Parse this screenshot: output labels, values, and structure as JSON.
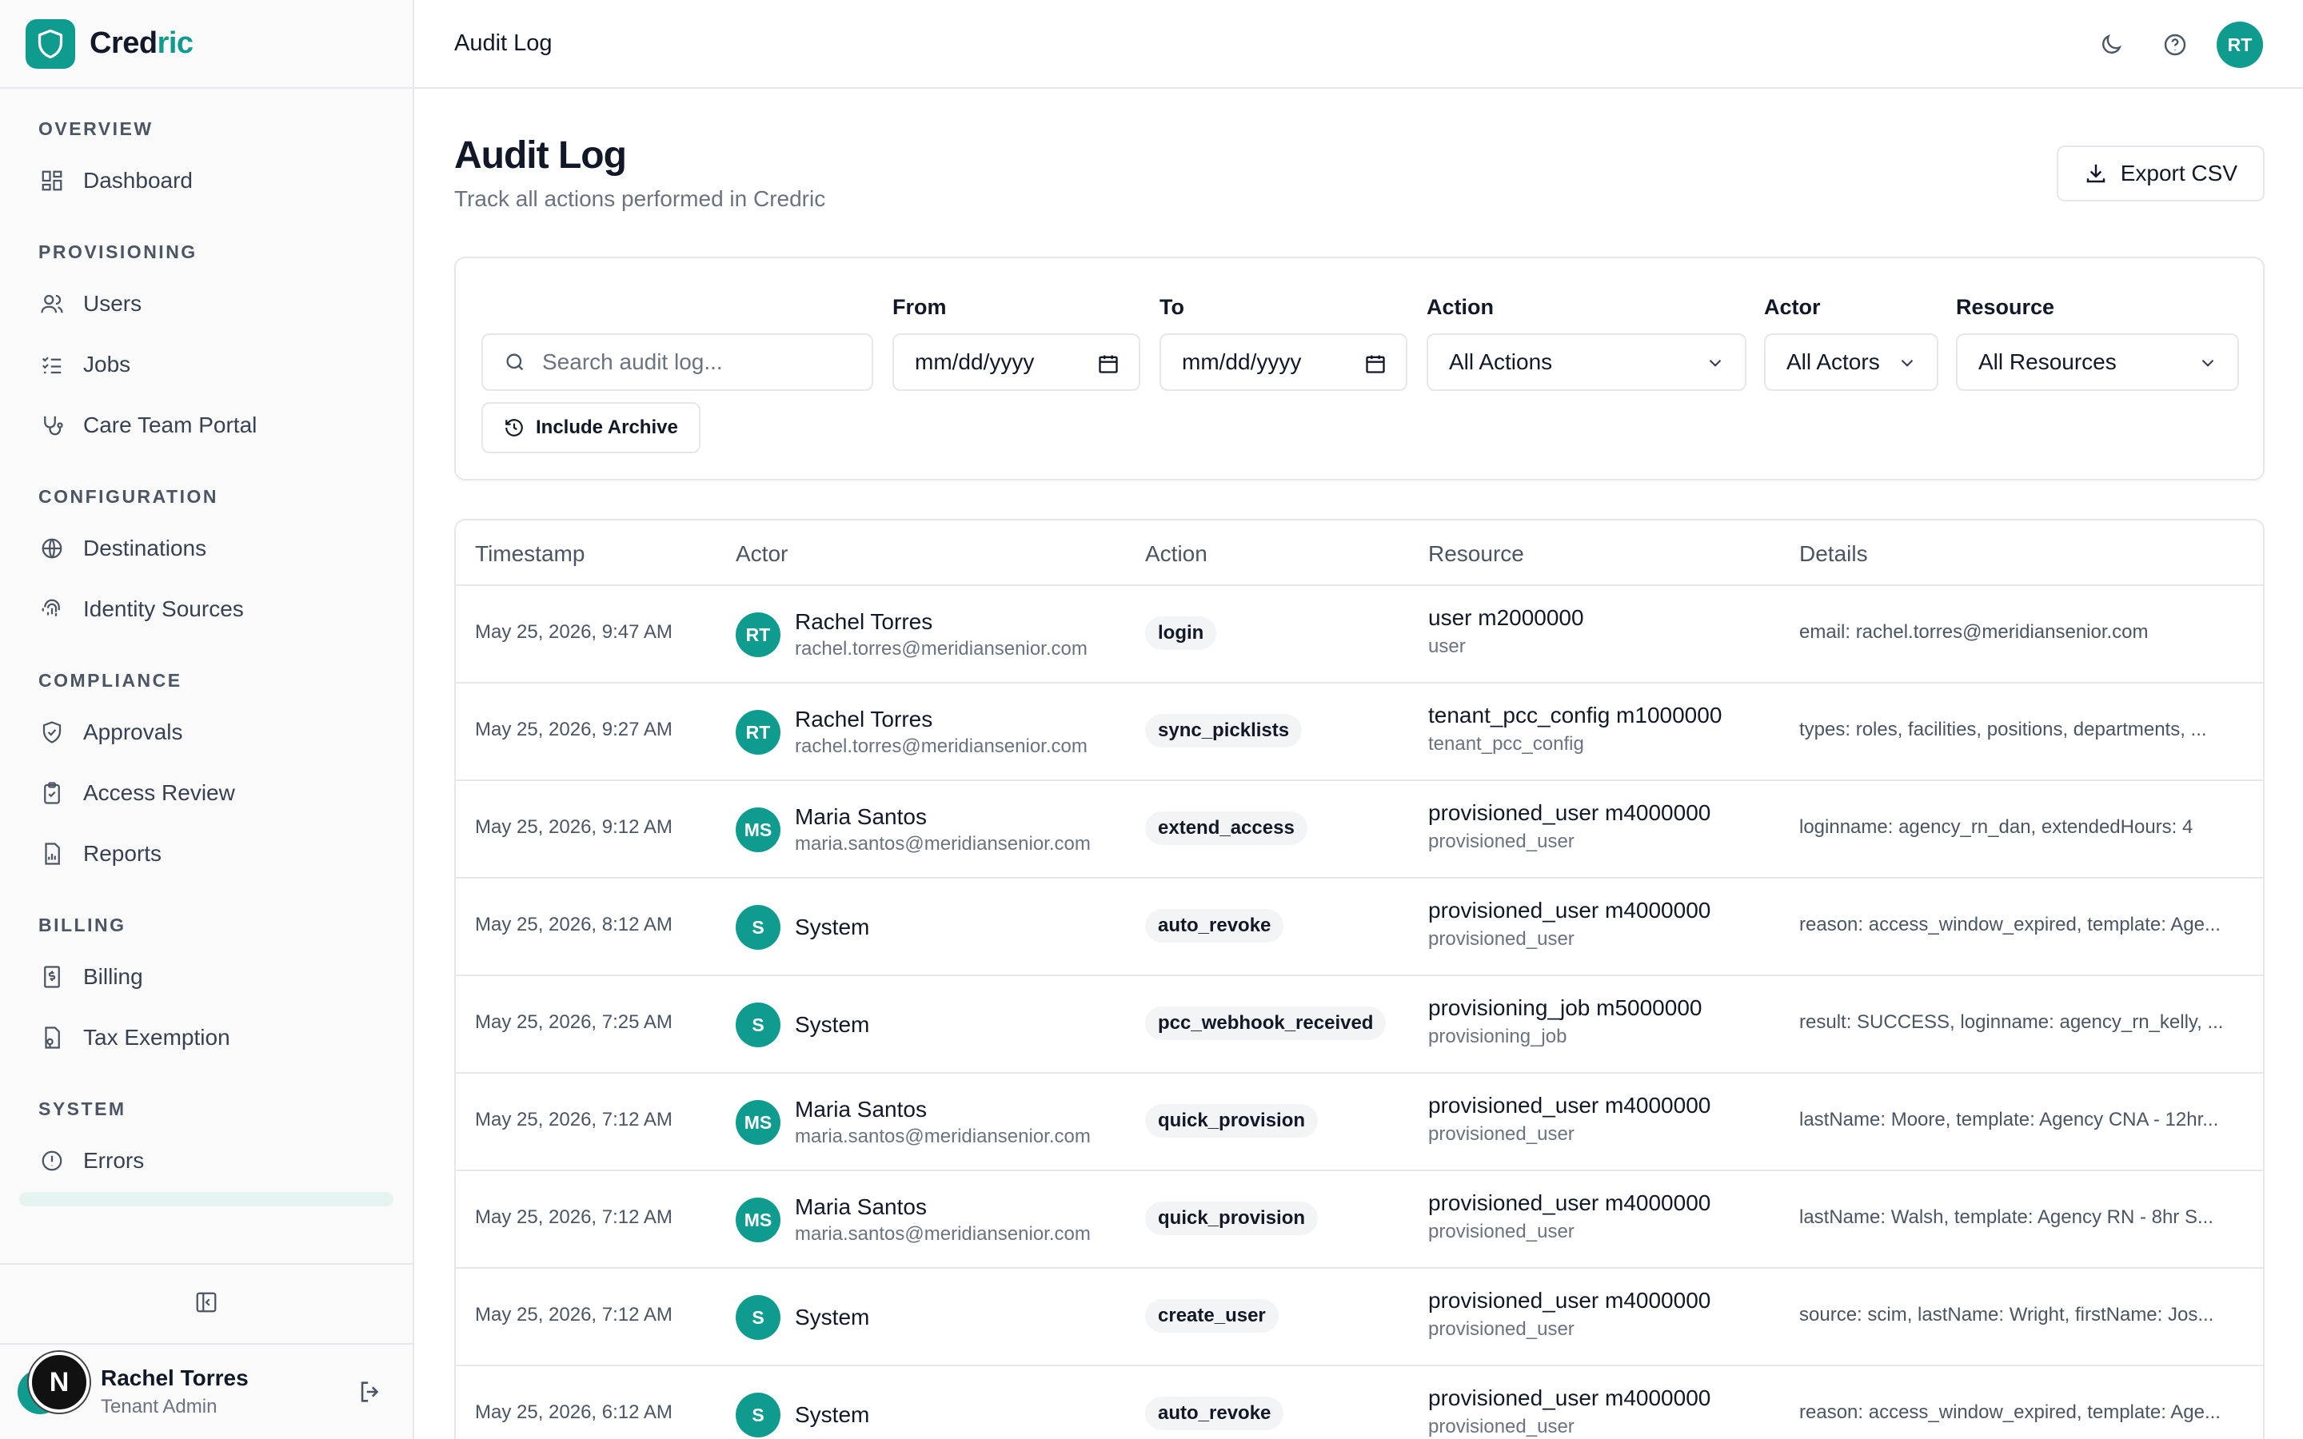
{
  "brand": {
    "name_prefix": "Cred",
    "name_accent": "ric"
  },
  "sidebar": {
    "sections": [
      {
        "title": "OVERVIEW",
        "items": [
          {
            "label": "Dashboard",
            "icon": "dashboard-icon"
          }
        ]
      },
      {
        "title": "PROVISIONING",
        "items": [
          {
            "label": "Users",
            "icon": "users-icon"
          },
          {
            "label": "Jobs",
            "icon": "list-checks-icon"
          },
          {
            "label": "Care Team Portal",
            "icon": "stethoscope-icon"
          }
        ]
      },
      {
        "title": "CONFIGURATION",
        "items": [
          {
            "label": "Destinations",
            "icon": "globe-icon"
          },
          {
            "label": "Identity Sources",
            "icon": "fingerprint-icon"
          }
        ]
      },
      {
        "title": "COMPLIANCE",
        "items": [
          {
            "label": "Approvals",
            "icon": "shield-check-icon"
          },
          {
            "label": "Access Review",
            "icon": "clipboard-check-icon"
          },
          {
            "label": "Reports",
            "icon": "report-icon"
          }
        ]
      },
      {
        "title": "BILLING",
        "items": [
          {
            "label": "Billing",
            "icon": "receipt-icon"
          },
          {
            "label": "Tax Exemption",
            "icon": "file-tax-icon"
          }
        ]
      },
      {
        "title": "SYSTEM",
        "items": [
          {
            "label": "Errors",
            "icon": "alert-circle-icon"
          }
        ]
      }
    ],
    "user": {
      "name": "Rachel Torres",
      "role": "Tenant Admin",
      "badge": "N"
    }
  },
  "topbar": {
    "title": "Audit Log",
    "avatar": "RT"
  },
  "page": {
    "title": "Audit Log",
    "subtitle": "Track all actions performed in Credric",
    "export_label": "Export CSV"
  },
  "filters": {
    "search_placeholder": "Search audit log...",
    "from_label": "From",
    "from_value": "mm/dd/yyyy",
    "to_label": "To",
    "to_value": "mm/dd/yyyy",
    "action_label": "Action",
    "action_value": "All Actions",
    "actor_label": "Actor",
    "actor_value": "All Actors",
    "resource_label": "Resource",
    "resource_value": "All Resources",
    "archive_label": "Include Archive"
  },
  "table": {
    "headers": {
      "timestamp": "Timestamp",
      "actor": "Actor",
      "action": "Action",
      "resource": "Resource",
      "details": "Details"
    },
    "rows": [
      {
        "ts": "May 25, 2026, 9:47 AM",
        "initials": "RT",
        "actor": "Rachel Torres",
        "email": "rachel.torres@meridiansenior.com",
        "action": "login",
        "resource": "user m2000000",
        "rtype": "user",
        "details": "email: rachel.torres@meridiansenior.com"
      },
      {
        "ts": "May 25, 2026, 9:27 AM",
        "initials": "RT",
        "actor": "Rachel Torres",
        "email": "rachel.torres@meridiansenior.com",
        "action": "sync_picklists",
        "resource": "tenant_pcc_config m1000000",
        "rtype": "tenant_pcc_config",
        "details": "types: roles, facilities, positions, departments, ..."
      },
      {
        "ts": "May 25, 2026, 9:12 AM",
        "initials": "MS",
        "actor": "Maria Santos",
        "email": "maria.santos@meridiansenior.com",
        "action": "extend_access",
        "resource": "provisioned_user m4000000",
        "rtype": "provisioned_user",
        "details": "loginname: agency_rn_dan, extendedHours: 4"
      },
      {
        "ts": "May 25, 2026, 8:12 AM",
        "initials": "S",
        "actor": "System",
        "email": "",
        "action": "auto_revoke",
        "resource": "provisioned_user m4000000",
        "rtype": "provisioned_user",
        "details": "reason: access_window_expired, template: Age..."
      },
      {
        "ts": "May 25, 2026, 7:25 AM",
        "initials": "S",
        "actor": "System",
        "email": "",
        "action": "pcc_webhook_received",
        "resource": "provisioning_job m5000000",
        "rtype": "provisioning_job",
        "details": "result: SUCCESS, loginname: agency_rn_kelly, ..."
      },
      {
        "ts": "May 25, 2026, 7:12 AM",
        "initials": "MS",
        "actor": "Maria Santos",
        "email": "maria.santos@meridiansenior.com",
        "action": "quick_provision",
        "resource": "provisioned_user m4000000",
        "rtype": "provisioned_user",
        "details": "lastName: Moore, template: Agency CNA - 12hr..."
      },
      {
        "ts": "May 25, 2026, 7:12 AM",
        "initials": "MS",
        "actor": "Maria Santos",
        "email": "maria.santos@meridiansenior.com",
        "action": "quick_provision",
        "resource": "provisioned_user m4000000",
        "rtype": "provisioned_user",
        "details": "lastName: Walsh, template: Agency RN - 8hr S..."
      },
      {
        "ts": "May 25, 2026, 7:12 AM",
        "initials": "S",
        "actor": "System",
        "email": "",
        "action": "create_user",
        "resource": "provisioned_user m4000000",
        "rtype": "provisioned_user",
        "details": "source: scim, lastName: Wright, firstName: Jos..."
      },
      {
        "ts": "May 25, 2026, 6:12 AM",
        "initials": "S",
        "actor": "System",
        "email": "",
        "action": "auto_revoke",
        "resource": "provisioned_user m4000000",
        "rtype": "provisioned_user",
        "details": "reason: access_window_expired, template: Age..."
      }
    ]
  },
  "colors": {
    "accent": "#0f9b8e",
    "border": "#e5e7eb",
    "muted": "#6b7280"
  }
}
